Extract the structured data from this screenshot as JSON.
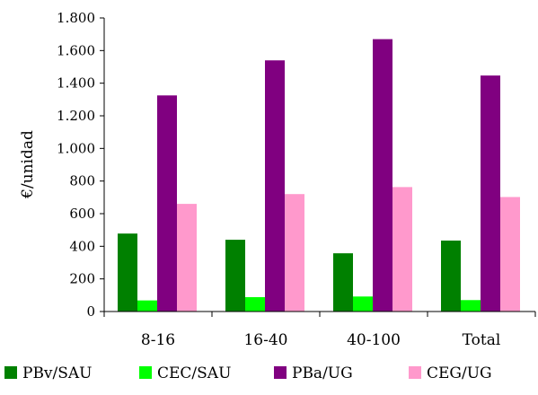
{
  "chart_data": {
    "type": "bar",
    "title": "",
    "xlabel": "",
    "ylabel": "€/unidad",
    "categories": [
      "8-16",
      "16-40",
      "40-100",
      "Total"
    ],
    "series": [
      {
        "name": "PBv/SAU",
        "color": "#008000",
        "values": [
          478,
          440,
          357,
          435
        ]
      },
      {
        "name": "CEC/SAU",
        "color": "#00ff00",
        "values": [
          68,
          88,
          92,
          70
        ]
      },
      {
        "name": "PBa/UG",
        "color": "#800080",
        "values": [
          1325,
          1540,
          1670,
          1447
        ]
      },
      {
        "name": "CEG/UG",
        "color": "#ff99cc",
        "values": [
          660,
          720,
          763,
          702
        ]
      }
    ],
    "ylim": [
      0,
      1800
    ],
    "yticks": [
      0,
      200,
      400,
      600,
      800,
      1000,
      1200,
      1400,
      1600,
      1800
    ],
    "ytick_labels": [
      "0",
      "200",
      "400",
      "600",
      "800",
      "1.000",
      "1.200",
      "1.400",
      "1.600",
      "1.800"
    ],
    "grid": false,
    "legend_position": "bottom"
  }
}
